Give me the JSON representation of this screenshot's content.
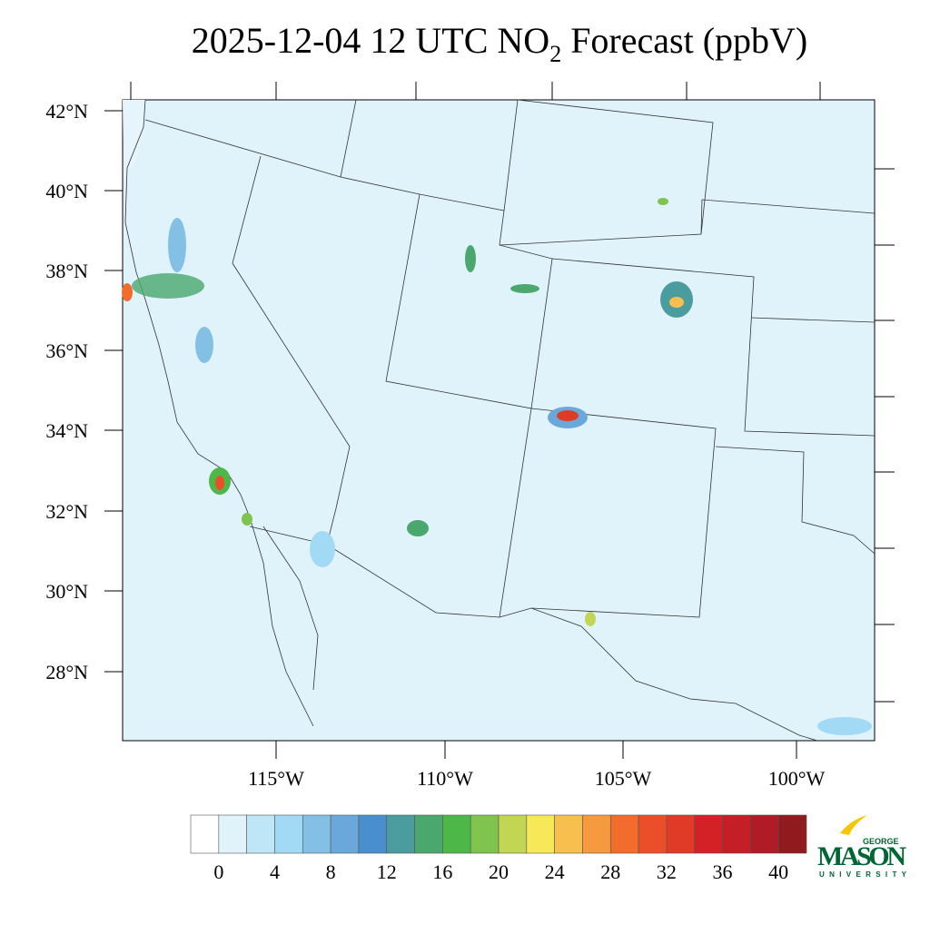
{
  "title": {
    "main": "2025-12-04 12 UTC NO",
    "subscript": "2",
    "rest": " Forecast (ppbV)"
  },
  "axes": {
    "lat_labels": [
      "42°N",
      "40°N",
      "38°N",
      "36°N",
      "34°N",
      "32°N",
      "30°N",
      "28°N"
    ],
    "lon_labels": [
      "115°W",
      "110°W",
      "105°W",
      "100°W"
    ]
  },
  "colorbar": {
    "colors": [
      "#ffffff",
      "#e0f3fb",
      "#bfe6f7",
      "#a2daf5",
      "#84c0e5",
      "#6aa8dc",
      "#4a8fcd",
      "#4a9c9e",
      "#4aa86f",
      "#4db748",
      "#80c44f",
      "#c2d654",
      "#f7e85a",
      "#f7c04e",
      "#f59a3e",
      "#f26d2c",
      "#ea4f2a",
      "#e03b26",
      "#d42027",
      "#c41e27",
      "#b01c25",
      "#901a1d"
    ],
    "ticks": [
      0,
      4,
      8,
      12,
      16,
      20,
      24,
      28,
      32,
      36,
      40
    ]
  },
  "logo": {
    "top": "GEORGE",
    "middle": "MASON",
    "bottom": "UNIVERSITY"
  }
}
